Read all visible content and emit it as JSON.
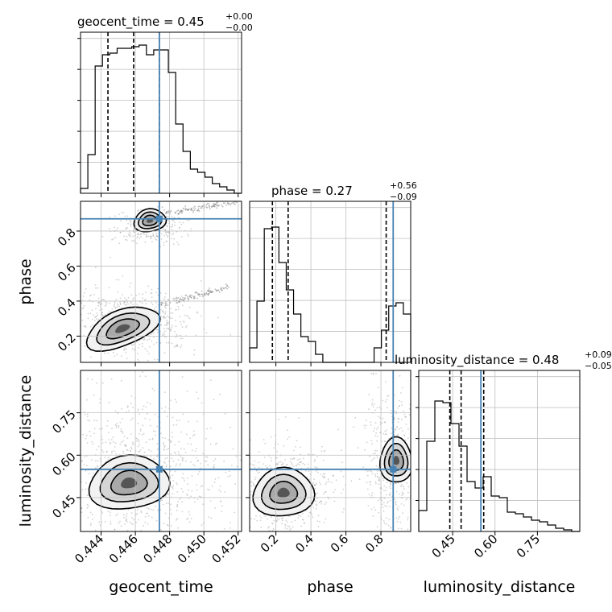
{
  "chart_data": {
    "type": "corner",
    "parameters": [
      "geocent_time",
      "phase",
      "luminosity_distance"
    ],
    "titles": [
      {
        "param": "geocent_time",
        "label": "geocent_time = 0.45",
        "sup": "+0.00",
        "sub": "−0.00",
        "median": 0.45,
        "plus": 0.0,
        "minus": 0.0
      },
      {
        "param": "phase",
        "label": "phase = 0.27",
        "sup": "+0.56",
        "sub": "−0.09",
        "median": 0.27,
        "plus": 0.56,
        "minus": 0.09
      },
      {
        "param": "luminosity_distance",
        "label": "luminosity_distance = 0.48",
        "sup": "+0.09",
        "sub": "−0.05",
        "median": 0.48,
        "plus": 0.09,
        "minus": 0.05
      }
    ],
    "axes": {
      "geocent_time": {
        "range": [
          0.4428,
          0.4522
        ],
        "ticks": [
          0.444,
          0.446,
          0.448,
          0.45,
          0.452
        ],
        "tick_labels": [
          "0.444",
          "0.446",
          "0.448",
          "0.450",
          "0.452"
        ]
      },
      "phase": {
        "range": [
          0.05,
          0.97
        ],
        "ticks": [
          0.2,
          0.4,
          0.6,
          0.8
        ],
        "tick_labels": [
          "0.2",
          "0.4",
          "0.6",
          "0.8"
        ]
      },
      "luminosity_distance": {
        "range": [
          0.33,
          0.9
        ],
        "ticks": [
          0.45,
          0.6,
          0.75
        ],
        "tick_labels": [
          "0.45",
          "0.60",
          "0.75"
        ]
      }
    },
    "truths": {
      "geocent_time": 0.4474,
      "phase": 0.87,
      "luminosity_distance": 0.55
    },
    "quantiles": {
      "geocent_time": [
        0.4444,
        0.4459,
        0.4474
      ],
      "phase": [
        0.18,
        0.27,
        0.83
      ],
      "luminosity_distance": [
        0.44,
        0.48,
        0.56
      ]
    },
    "histograms": {
      "geocent_time": [
        0.03,
        0.24,
        0.79,
        0.86,
        0.87,
        0.9,
        0.9,
        0.91,
        0.92,
        0.86,
        0.89,
        0.89,
        0.75,
        0.43,
        0.26,
        0.15,
        0.13,
        0.1,
        0.06,
        0.04,
        0.02,
        0.0
      ],
      "phase": [
        0.09,
        0.38,
        0.83,
        0.84,
        0.62,
        0.45,
        0.3,
        0.16,
        0.13,
        0.05,
        0.0,
        0.0,
        0.0,
        0.0,
        0.0,
        0.0,
        0.0,
        0.09,
        0.2,
        0.35,
        0.37,
        0.3
      ],
      "luminosity_distance": [
        0.13,
        0.56,
        0.81,
        0.8,
        0.67,
        0.53,
        0.31,
        0.27,
        0.34,
        0.22,
        0.21,
        0.12,
        0.11,
        0.09,
        0.07,
        0.06,
        0.04,
        0.02,
        0.01,
        0.0
      ]
    },
    "grid": true,
    "colors": {
      "truth": "#4682b4",
      "contour": "#000000",
      "points": "#9a9a9a",
      "grid": "#bfbfbf"
    }
  }
}
